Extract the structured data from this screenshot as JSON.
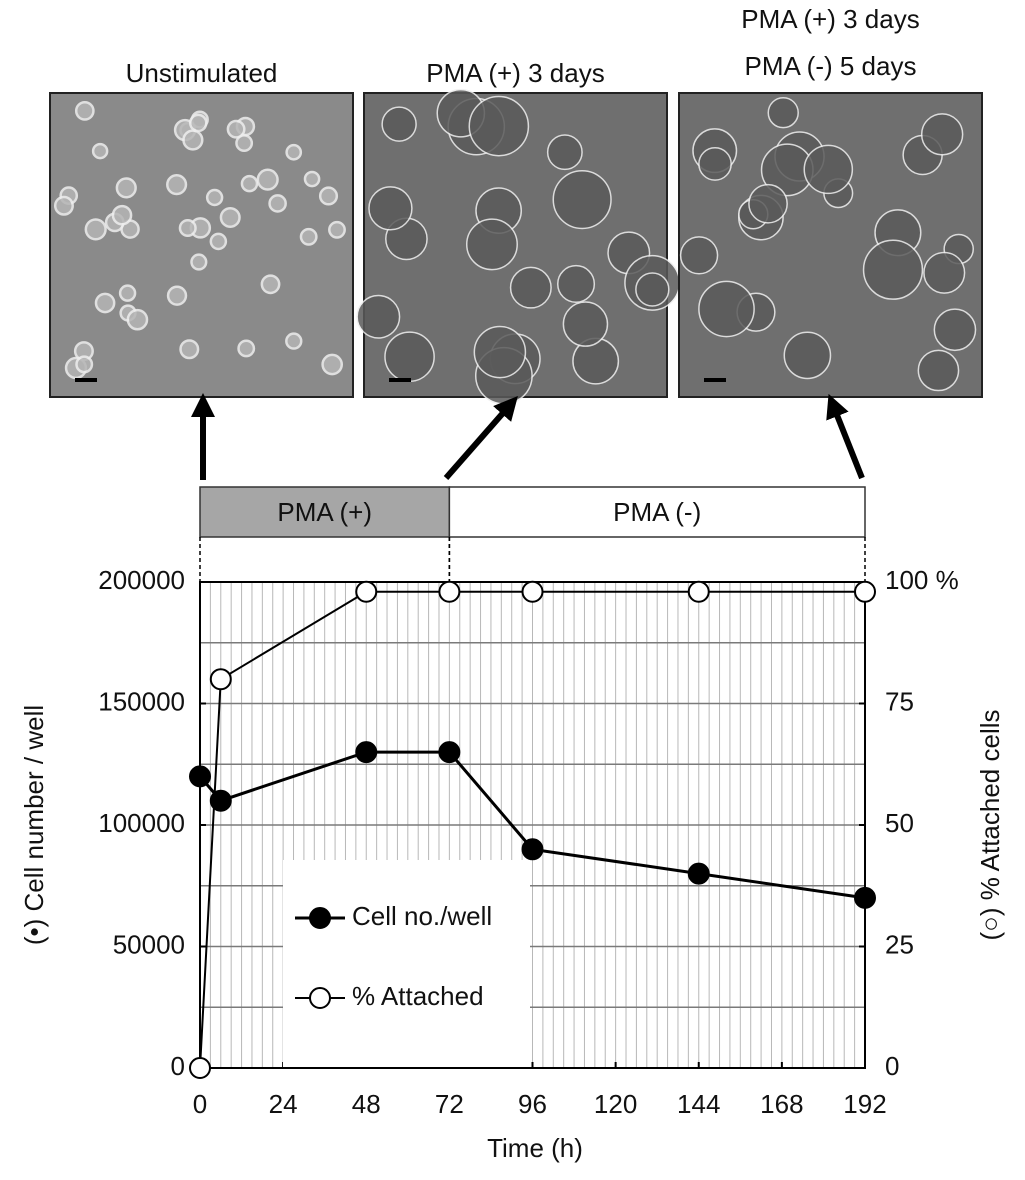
{
  "panels": [
    {
      "title": [
        "Unstimulated"
      ]
    },
    {
      "title": [
        "PMA (+) 3 days"
      ]
    },
    {
      "title": [
        "PMA (+) 3 days",
        "PMA (-) 5 days"
      ]
    }
  ],
  "treatment_bar": [
    {
      "label": "PMA (+)",
      "start": 0,
      "end": 72,
      "color": "#a6a6a6"
    },
    {
      "label": "PMA (-)",
      "start": 72,
      "end": 192,
      "color": "#ffffff"
    }
  ],
  "chart_data": {
    "type": "line",
    "xlabel": "Time (h)",
    "ylabel": "(•) Cell number / well",
    "y2label": "(○) % Attached cells",
    "xlim": [
      0,
      192
    ],
    "xticks": [
      0,
      24,
      48,
      72,
      96,
      120,
      144,
      168,
      192
    ],
    "ylim": [
      0,
      200000
    ],
    "yticks": [
      0,
      50000,
      100000,
      150000,
      200000
    ],
    "y2lim": [
      0,
      100
    ],
    "y2ticks": [
      0,
      25,
      50,
      75,
      {
        "value": 100,
        "label": "100 %"
      }
    ],
    "grid": true,
    "xgrid_step": 3,
    "ygrid_step": 25000,
    "legend": "lower left",
    "series": [
      {
        "name": "Cell no./well",
        "color": "#000000",
        "marker_fill": "#000000",
        "x": [
          0,
          6,
          48,
          72,
          96,
          144,
          192
        ],
        "values": [
          120000,
          110000,
          130000,
          130000,
          90000,
          80000,
          70000
        ]
      },
      {
        "name": "% Attached",
        "color": "#000000",
        "marker_fill": "#ffffff",
        "axis": "y2",
        "x": [
          0,
          6,
          48,
          72,
          96,
          144,
          192
        ],
        "values": [
          0,
          80,
          98,
          98,
          98,
          98,
          98
        ]
      }
    ]
  }
}
